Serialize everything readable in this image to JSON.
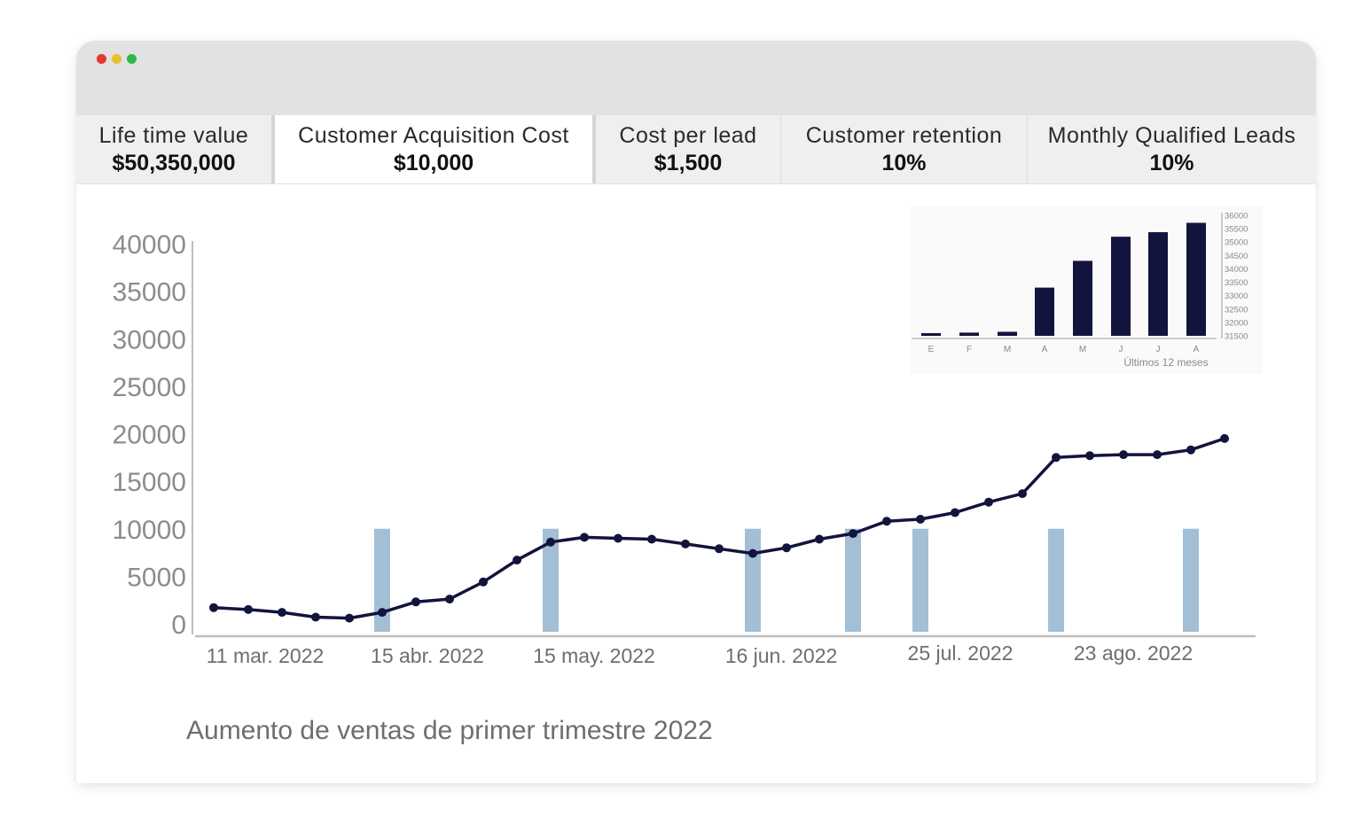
{
  "window": {
    "controls": [
      "close",
      "minimize",
      "maximize"
    ],
    "colors": {
      "close": "#e13a2f",
      "minimize": "#e8c02b",
      "maximize": "#2fb848"
    }
  },
  "kpis": [
    {
      "label": "Life time value",
      "value": "$50,350,000"
    },
    {
      "label": "Customer Acquisition Cost",
      "value": "$10,000"
    },
    {
      "label": "Cost per lead",
      "value": "$1,500"
    },
    {
      "label": "Customer retention",
      "value": "10%"
    },
    {
      "label": "Monthly Qualified Leads",
      "value": "10%"
    }
  ],
  "chart_data": [
    {
      "type": "line",
      "title": "Aumento de ventas de primer trimestre 2022",
      "ylim": [
        0,
        40000
      ],
      "yticks": [
        "40000",
        "35000",
        "30000",
        "25000",
        "20000",
        "15000",
        "10000",
        "5000",
        "0"
      ],
      "x_tick_labels": [
        "11 mar. 2022",
        "15 abr. 2022",
        "15 may. 2022",
        "16 jun. 2022",
        "25 jul. 2022",
        "23 ago. 2022"
      ],
      "grid": false,
      "series": [
        {
          "type": "line",
          "color": "#12143d",
          "values": [
            1700,
            1500,
            1200,
            700,
            600,
            1200,
            2300,
            2600,
            4400,
            6700,
            8600,
            9100,
            9000,
            8900,
            8400,
            7900,
            7400,
            8000,
            8900,
            9500,
            10800,
            11000,
            11700,
            12800,
            13700,
            17500,
            17700,
            17800,
            17800,
            18300,
            19500
          ]
        },
        {
          "type": "bar",
          "color": "#a3bfd6",
          "values": [
            10000,
            10000,
            10000,
            10000,
            10000,
            10000,
            10000
          ]
        }
      ]
    },
    {
      "type": "bar",
      "categories": [
        "E",
        "F",
        "M",
        "A",
        "M",
        "J",
        "J",
        "A"
      ],
      "values": [
        31600,
        31620,
        31650,
        33300,
        34300,
        35200,
        35370,
        35720
      ],
      "ylim": [
        31500,
        36000
      ],
      "yticks": [
        "36000",
        "35500",
        "35000",
        "34500",
        "34000",
        "33500",
        "33000",
        "32500",
        "32000",
        "31500"
      ],
      "xlabel": "Últimos 12 meses",
      "color": "#12143d"
    }
  ]
}
